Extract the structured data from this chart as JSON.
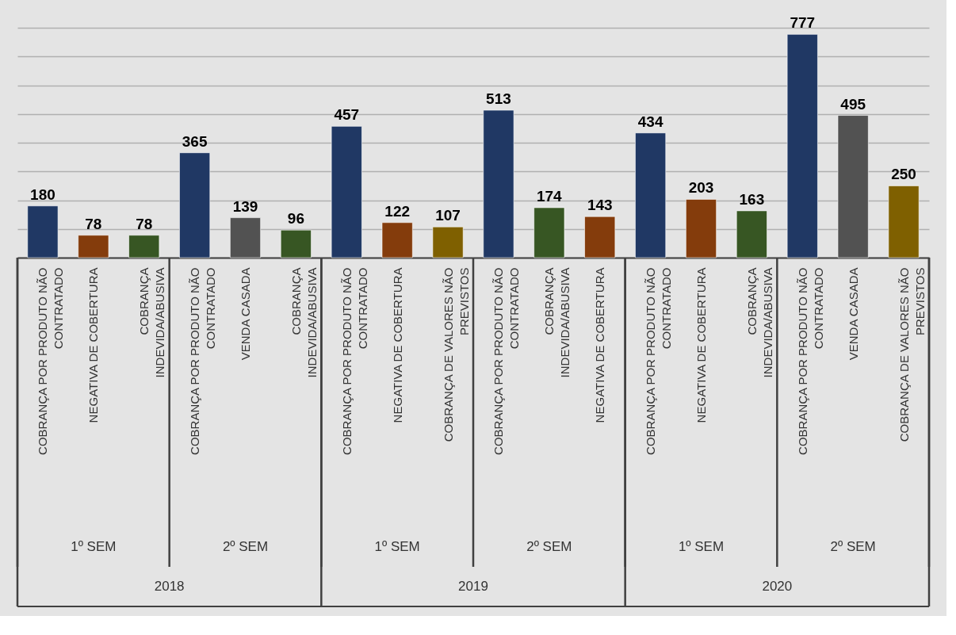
{
  "chart_data": {
    "type": "bar",
    "categories": [
      "COBRANÇA POR PRODUTO NÃO CONTRATADO",
      "NEGATIVA DE COBERTURA",
      "COBRANÇA INDEVIDA/ABUSIVA",
      "COBRANÇA POR PRODUTO NÃO CONTRATADO",
      "VENDA CASADA",
      "COBRANÇA INDEVIDA/ABUSIVA",
      "COBRANÇA POR PRODUTO NÃO CONTRATADO",
      "NEGATIVA DE COBERTURA",
      "COBRANÇA DE VALORES NÃO PREVISTOS",
      "COBRANÇA POR PRODUTO NÃO CONTRATADO",
      "COBRANÇA INDEVIDA/ABUSIVA",
      "NEGATIVA DE COBERTURA",
      "COBRANÇA POR PRODUTO NÃO CONTRATADO",
      "NEGATIVA DE COBERTURA",
      "COBRANÇA INDEVIDA/ABUSIVA",
      "COBRANÇA POR PRODUTO NÃO CONTRATADO",
      "VENDA CASADA",
      "COBRANÇA DE VALORES NÃO PREVISTOS"
    ],
    "values": [
      180,
      78,
      78,
      365,
      139,
      96,
      457,
      122,
      107,
      513,
      174,
      143,
      434,
      203,
      163,
      777,
      495,
      250
    ],
    "colors": [
      "#203864",
      "#843c0c",
      "#375623",
      "#203864",
      "#525252",
      "#375623",
      "#203864",
      "#843c0c",
      "#7f6000",
      "#203864",
      "#375623",
      "#843c0c",
      "#203864",
      "#843c0c",
      "#375623",
      "#203864",
      "#525252",
      "#7f6000"
    ],
    "grid": "y",
    "tick_labels": "x",
    "data_labels": true,
    "annotations": [
      "1º SEM",
      "2º SEM",
      "1º SEM",
      "2º SEM",
      "1º SEM",
      "2º SEM",
      "2018",
      "2019",
      "2020"
    ]
  }
}
